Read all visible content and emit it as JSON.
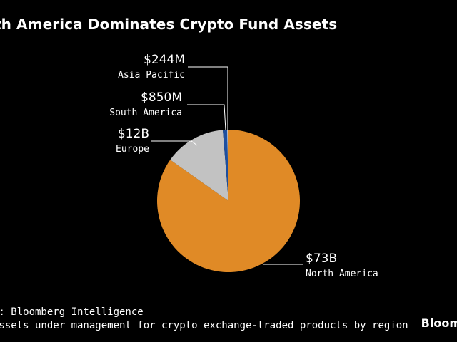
{
  "title": "th America Dominates Crypto Fund Assets",
  "source": "e: Bloomberg Intelligence",
  "note": "Assets under management for crypto exchange-traded products by region",
  "logo": "Bloom",
  "chart_data": {
    "type": "pie",
    "title": "th America Dominates Crypto Fund Assets",
    "unit": "USD",
    "slices": [
      {
        "name": "North America",
        "label": "$73B",
        "value": 73000,
        "color": "#e08a26"
      },
      {
        "name": "Europe",
        "label": "$12B",
        "value": 12000,
        "color": "#c2c2c2"
      },
      {
        "name": "South America",
        "label": "$850M",
        "value": 850,
        "color": "#1d4fa0"
      },
      {
        "name": "Asia Pacific",
        "label": "$244M",
        "value": 244,
        "color": "#f2f2f2"
      }
    ],
    "legend": "none"
  }
}
